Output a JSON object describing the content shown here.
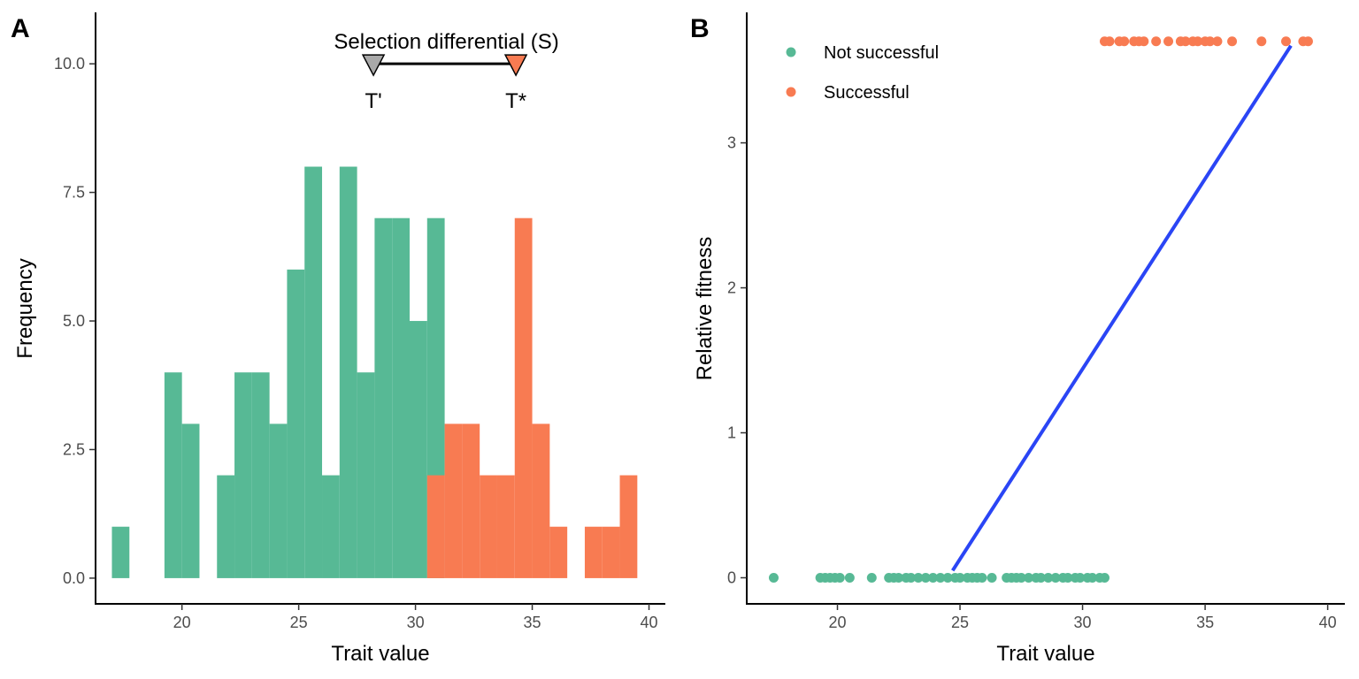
{
  "colors": {
    "not_successful": "#57b995",
    "successful": "#f87b52",
    "regression_line": "#2a45f5",
    "mean_marker": "#a9a9a9"
  },
  "chart_data": [
    {
      "panel": "A",
      "type": "bar",
      "xlabel": "Trait value",
      "ylabel": "Frequency",
      "xlim": [
        16.3,
        40.7
      ],
      "ylim": [
        -0.5,
        11.0
      ],
      "xticks": [
        20,
        25,
        30,
        35,
        40
      ],
      "yticks": [
        0.0,
        2.5,
        5.0,
        7.5,
        10.0
      ],
      "xtick_labels": [
        "20",
        "25",
        "30",
        "35",
        "40"
      ],
      "ytick_labels": [
        "0.0",
        "2.5",
        "5.0",
        "7.5",
        "10.0"
      ],
      "bin_width": 0.75,
      "series": [
        {
          "name": "Not successful",
          "bins": [
            {
              "x0": 17.0,
              "x1": 17.75,
              "count": 1
            },
            {
              "x0": 19.25,
              "x1": 20.0,
              "count": 4
            },
            {
              "x0": 20.0,
              "x1": 20.75,
              "count": 3
            },
            {
              "x0": 21.5,
              "x1": 22.25,
              "count": 2
            },
            {
              "x0": 22.25,
              "x1": 23.0,
              "count": 4
            },
            {
              "x0": 23.0,
              "x1": 23.75,
              "count": 4
            },
            {
              "x0": 23.75,
              "x1": 24.5,
              "count": 3
            },
            {
              "x0": 24.5,
              "x1": 25.25,
              "count": 6
            },
            {
              "x0": 25.25,
              "x1": 26.0,
              "count": 8
            },
            {
              "x0": 26.0,
              "x1": 26.75,
              "count": 2
            },
            {
              "x0": 26.75,
              "x1": 27.5,
              "count": 8
            },
            {
              "x0": 27.5,
              "x1": 28.25,
              "count": 4
            },
            {
              "x0": 28.25,
              "x1": 29.0,
              "count": 7
            },
            {
              "x0": 29.0,
              "x1": 29.75,
              "count": 7
            },
            {
              "x0": 29.75,
              "x1": 30.5,
              "count": 5
            },
            {
              "x0": 30.5,
              "x1": 31.25,
              "count": 7
            }
          ]
        },
        {
          "name": "Successful",
          "bins": [
            {
              "x0": 30.5,
              "x1": 31.25,
              "count": 2
            },
            {
              "x0": 31.25,
              "x1": 32.0,
              "count": 3
            },
            {
              "x0": 32.0,
              "x1": 32.75,
              "count": 3
            },
            {
              "x0": 32.75,
              "x1": 33.5,
              "count": 2
            },
            {
              "x0": 33.5,
              "x1": 34.25,
              "count": 2
            },
            {
              "x0": 34.25,
              "x1": 35.0,
              "count": 7
            },
            {
              "x0": 35.0,
              "x1": 35.75,
              "count": 3
            },
            {
              "x0": 35.75,
              "x1": 36.5,
              "count": 1
            },
            {
              "x0": 37.25,
              "x1": 38.0,
              "count": 1
            },
            {
              "x0": 38.0,
              "x1": 38.75,
              "count": 1
            },
            {
              "x0": 38.75,
              "x1": 39.5,
              "count": 2
            }
          ]
        }
      ],
      "annotation": {
        "title": "Selection differential (S)",
        "y": 10.0,
        "t_prime": {
          "x": 28.2,
          "label": "T'"
        },
        "t_star": {
          "x": 34.3,
          "label": "T*"
        }
      }
    },
    {
      "panel": "B",
      "type": "scatter",
      "xlabel": "Trait value",
      "ylabel": "Relative fitness",
      "xlim": [
        16.3,
        40.7
      ],
      "ylim": [
        -0.18,
        3.9
      ],
      "xticks": [
        20,
        25,
        30,
        35,
        40
      ],
      "yticks": [
        0,
        1,
        2,
        3
      ],
      "xtick_labels": [
        "20",
        "25",
        "30",
        "35",
        "40"
      ],
      "ytick_labels": [
        "0",
        "1",
        "2",
        "3"
      ],
      "legend_position": "top-left",
      "series": [
        {
          "name": "Not successful",
          "y": 0,
          "x": [
            17.4,
            19.3,
            19.5,
            19.7,
            19.9,
            20.1,
            20.5,
            21.4,
            22.1,
            22.3,
            22.5,
            22.8,
            23.0,
            23.3,
            23.6,
            23.9,
            24.2,
            24.5,
            24.8,
            25.0,
            25.3,
            25.5,
            25.7,
            25.9,
            26.3,
            26.9,
            27.1,
            27.3,
            27.5,
            27.8,
            28.1,
            28.3,
            28.6,
            28.9,
            29.2,
            29.4,
            29.7,
            29.9,
            30.2,
            30.4,
            30.7,
            30.9
          ]
        },
        {
          "name": "Successful",
          "y": 3.7,
          "x": [
            30.9,
            31.1,
            31.5,
            31.7,
            32.1,
            32.3,
            32.5,
            33.0,
            33.5,
            34.0,
            34.2,
            34.5,
            34.7,
            35.0,
            35.2,
            35.5,
            36.1,
            37.3,
            38.3,
            39.0,
            39.2
          ]
        }
      ],
      "regression": {
        "x0": 24.7,
        "y0": 0.05,
        "x1": 38.5,
        "y1": 3.67
      },
      "legend": {
        "items": [
          "Not successful",
          "Successful"
        ]
      }
    }
  ]
}
